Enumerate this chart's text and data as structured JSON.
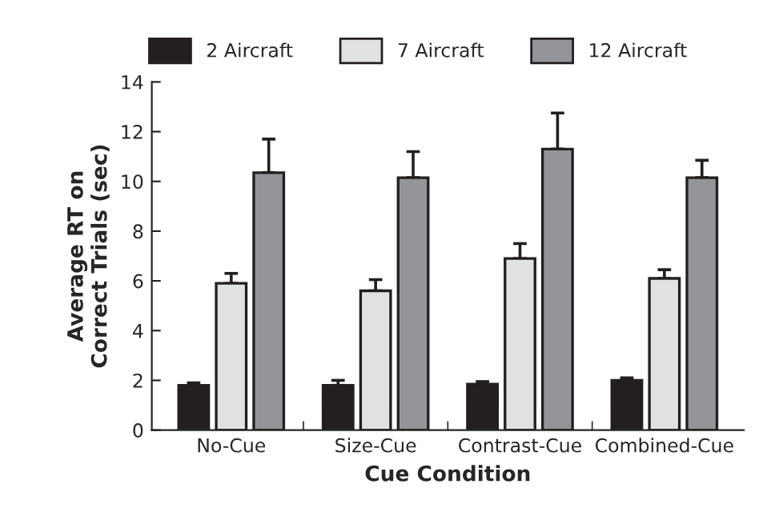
{
  "chart_data": {
    "type": "bar",
    "xlabel": "Cue Condition",
    "ylabel": "Average RT on\nCorrect Trials (sec)",
    "categories": [
      "No-Cue",
      "Size-Cue",
      "Contrast-Cue",
      "Combined-Cue"
    ],
    "series": [
      {
        "name": "2 Aircraft",
        "color": "#231f20",
        "values": [
          1.8,
          1.8,
          1.85,
          2.0
        ],
        "errors": [
          [
            1.8,
            1.9
          ],
          [
            1.8,
            2.0
          ],
          [
            1.85,
            1.95
          ],
          [
            2.0,
            2.1
          ]
        ]
      },
      {
        "name": "7 Aircraft",
        "color": "#e0e1e2",
        "values": [
          5.9,
          5.6,
          6.9,
          6.1
        ],
        "errors": [
          [
            5.9,
            6.3
          ],
          [
            5.6,
            6.05
          ],
          [
            6.9,
            7.5
          ],
          [
            6.1,
            6.45
          ]
        ]
      },
      {
        "name": "12 Aircraft",
        "color": "#939598",
        "values": [
          10.35,
          10.15,
          11.3,
          10.15
        ],
        "errors": [
          [
            10.35,
            11.7
          ],
          [
            10.15,
            11.2
          ],
          [
            11.3,
            12.75
          ],
          [
            10.15,
            10.85
          ]
        ]
      }
    ],
    "ylim": [
      0,
      14
    ],
    "yticks": [
      0,
      2,
      4,
      6,
      8,
      10,
      12,
      14
    ],
    "grid": false,
    "legend": "top"
  }
}
